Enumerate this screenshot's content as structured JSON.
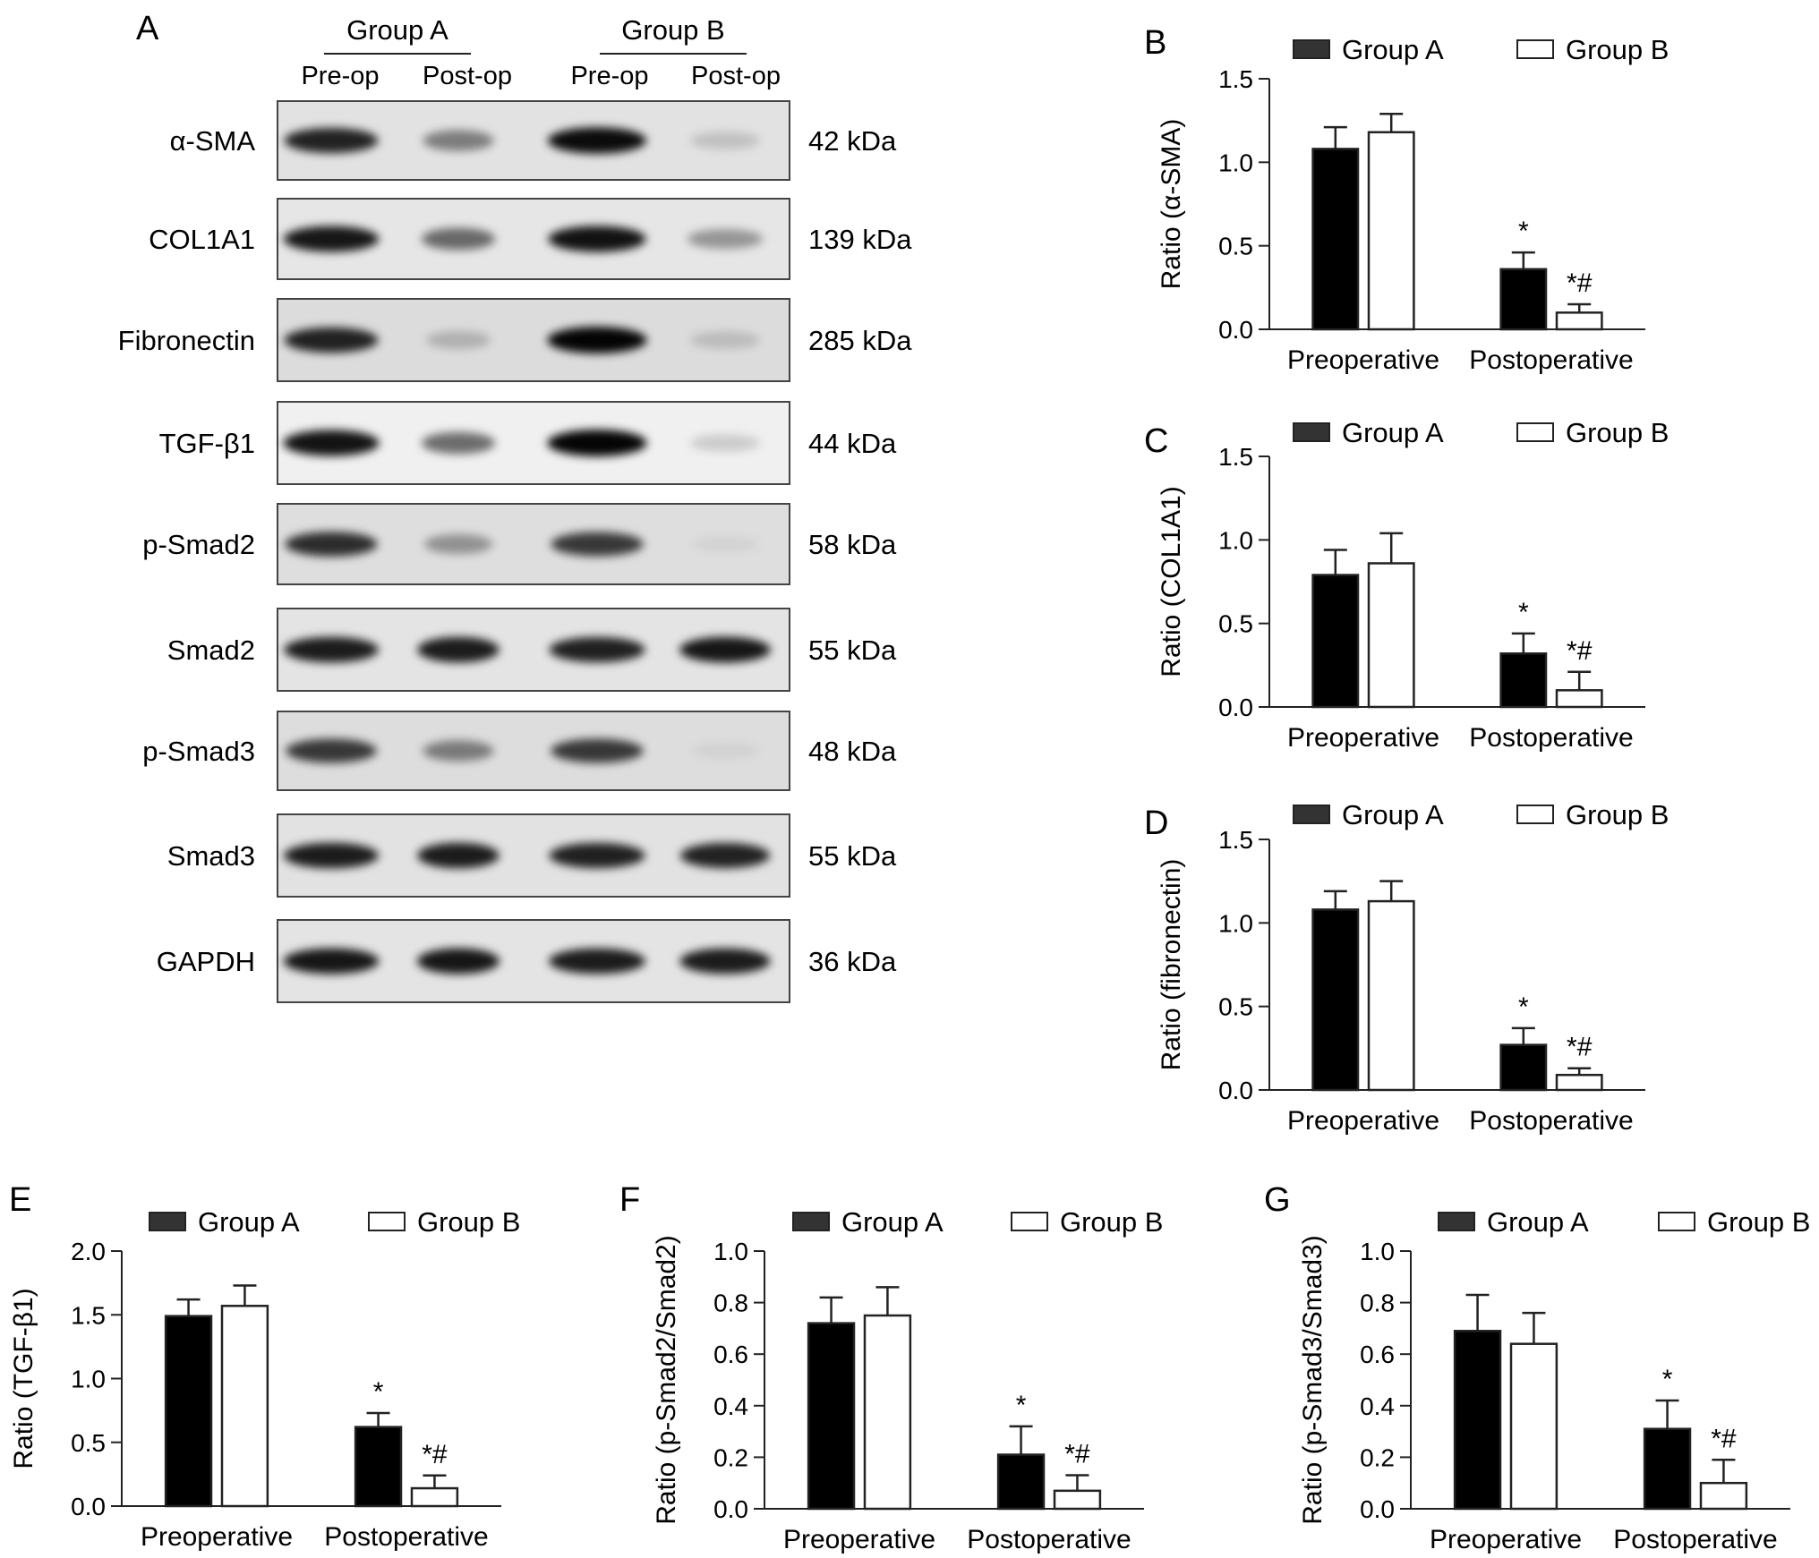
{
  "colors": {
    "ink": "#222222",
    "group_a_fill": "#000000",
    "group_b_fill": "#ffffff",
    "blot_frame": "#444444"
  },
  "blot": {
    "panel_label": "A",
    "groups": [
      {
        "label": "Group A",
        "lanes": [
          "Pre-op",
          "Post-op"
        ]
      },
      {
        "label": "Group B",
        "lanes": [
          "Pre-op",
          "Post-op"
        ]
      }
    ],
    "rows": [
      {
        "protein": "α-SMA",
        "kda": "42 kDa",
        "bg": "#e2e2e2",
        "bands": [
          0.85,
          0.45,
          0.95,
          0.15
        ]
      },
      {
        "protein": "COL1A1",
        "kda": "139 kDa",
        "bg": "#e6e6e6",
        "bands": [
          0.9,
          0.55,
          0.92,
          0.35
        ]
      },
      {
        "protein": "Fibronectin",
        "kda": "285 kDa",
        "bg": "#dcdcdc",
        "bands": [
          0.85,
          0.2,
          0.98,
          0.15
        ]
      },
      {
        "protein": "TGF-β1",
        "kda": "44 kDa",
        "bg": "#f0f0f0",
        "bands": [
          0.92,
          0.55,
          0.98,
          0.15
        ]
      },
      {
        "protein": "p-Smad2",
        "kda": "58 kDa",
        "bg": "#dedede",
        "bands": [
          0.8,
          0.35,
          0.75,
          0.05
        ]
      },
      {
        "protein": "Smad2",
        "kda": "55 kDa",
        "bg": "#e4e4e4",
        "bands": [
          0.88,
          0.88,
          0.86,
          0.9
        ]
      },
      {
        "protein": "p-Smad3",
        "kda": "48 kDa",
        "bg": "#dddddd",
        "bands": [
          0.75,
          0.45,
          0.75,
          0.05
        ]
      },
      {
        "protein": "Smad3",
        "kda": "55 kDa",
        "bg": "#e2e2e2",
        "bands": [
          0.88,
          0.88,
          0.86,
          0.85
        ]
      },
      {
        "protein": "GAPDH",
        "kda": "36 kDa",
        "bg": "#e4e4e4",
        "bands": [
          0.9,
          0.9,
          0.88,
          0.88
        ]
      }
    ]
  },
  "chart_data": [
    {
      "panel": "B",
      "type": "bar",
      "categories": [
        "Preoperative",
        "Postoperative"
      ],
      "ylabel": "Ratio (α-SMA)",
      "ylim": [
        0,
        1.5
      ],
      "yticks": [
        0.0,
        0.5,
        1.0,
        1.5
      ],
      "tick_labels": [
        "0.0",
        "0.5",
        "1.0",
        "1.5"
      ],
      "series": [
        {
          "name": "Group A",
          "values": [
            1.08,
            0.36
          ],
          "errors": [
            0.13,
            0.1
          ]
        },
        {
          "name": "Group B",
          "values": [
            1.18,
            0.1
          ],
          "errors": [
            0.11,
            0.05
          ]
        }
      ],
      "annotations": [
        {
          "text": "*",
          "series": 0,
          "category": 1
        },
        {
          "text": "*#",
          "series": 1,
          "category": 1
        }
      ],
      "legend": "top"
    },
    {
      "panel": "C",
      "type": "bar",
      "categories": [
        "Preoperative",
        "Postoperative"
      ],
      "ylabel": "Ratio (COL1A1)",
      "ylim": [
        0,
        1.5
      ],
      "yticks": [
        0.0,
        0.5,
        1.0,
        1.5
      ],
      "tick_labels": [
        "0.0",
        "0.5",
        "1.0",
        "1.5"
      ],
      "series": [
        {
          "name": "Group A",
          "values": [
            0.79,
            0.32
          ],
          "errors": [
            0.15,
            0.12
          ]
        },
        {
          "name": "Group B",
          "values": [
            0.86,
            0.1
          ],
          "errors": [
            0.18,
            0.11
          ]
        }
      ],
      "annotations": [
        {
          "text": "*",
          "series": 0,
          "category": 1
        },
        {
          "text": "*#",
          "series": 1,
          "category": 1
        }
      ],
      "legend": "top"
    },
    {
      "panel": "D",
      "type": "bar",
      "categories": [
        "Preoperative",
        "Postoperative"
      ],
      "ylabel": "Ratio (fibronectin)",
      "ylim": [
        0,
        1.5
      ],
      "yticks": [
        0.0,
        0.5,
        1.0,
        1.5
      ],
      "tick_labels": [
        "0.0",
        "0.5",
        "1.0",
        "1.5"
      ],
      "series": [
        {
          "name": "Group A",
          "values": [
            1.08,
            0.27
          ],
          "errors": [
            0.11,
            0.1
          ]
        },
        {
          "name": "Group B",
          "values": [
            1.13,
            0.09
          ],
          "errors": [
            0.12,
            0.04
          ]
        }
      ],
      "annotations": [
        {
          "text": "*",
          "series": 0,
          "category": 1
        },
        {
          "text": "*#",
          "series": 1,
          "category": 1
        }
      ],
      "legend": "top"
    },
    {
      "panel": "E",
      "type": "bar",
      "categories": [
        "Preoperative",
        "Postoperative"
      ],
      "ylabel": "Ratio (TGF-β1)",
      "ylim": [
        0,
        2.0
      ],
      "yticks": [
        0.0,
        0.5,
        1.0,
        1.5,
        2.0
      ],
      "tick_labels": [
        "0.0",
        "0.5",
        "1.0",
        "1.5",
        "2.0"
      ],
      "series": [
        {
          "name": "Group A",
          "values": [
            1.49,
            0.62
          ],
          "errors": [
            0.13,
            0.11
          ]
        },
        {
          "name": "Group B",
          "values": [
            1.57,
            0.14
          ],
          "errors": [
            0.16,
            0.1
          ]
        }
      ],
      "annotations": [
        {
          "text": "*",
          "series": 0,
          "category": 1
        },
        {
          "text": "*#",
          "series": 1,
          "category": 1
        }
      ],
      "legend": "top"
    },
    {
      "panel": "F",
      "type": "bar",
      "categories": [
        "Preoperative",
        "Postoperative"
      ],
      "ylabel": "Ratio (p-Smad2/Smad2)",
      "ylim": [
        0,
        1.0
      ],
      "yticks": [
        0.0,
        0.2,
        0.4,
        0.6,
        0.8,
        1.0
      ],
      "tick_labels": [
        "0.0",
        "0.2",
        "0.4",
        "0.6",
        "0.8",
        "1.0"
      ],
      "series": [
        {
          "name": "Group A",
          "values": [
            0.72,
            0.21
          ],
          "errors": [
            0.1,
            0.11
          ]
        },
        {
          "name": "Group B",
          "values": [
            0.75,
            0.07
          ],
          "errors": [
            0.11,
            0.06
          ]
        }
      ],
      "annotations": [
        {
          "text": "*",
          "series": 0,
          "category": 1
        },
        {
          "text": "*#",
          "series": 1,
          "category": 1
        }
      ],
      "legend": "top"
    },
    {
      "panel": "G",
      "type": "bar",
      "categories": [
        "Preoperative",
        "Postoperative"
      ],
      "ylabel": "Ratio (p-Smad3/Smad3)",
      "ylim": [
        0,
        1.0
      ],
      "yticks": [
        0.0,
        0.2,
        0.4,
        0.6,
        0.8,
        1.0
      ],
      "tick_labels": [
        "0.0",
        "0.2",
        "0.4",
        "0.6",
        "0.8",
        "1.0"
      ],
      "series": [
        {
          "name": "Group A",
          "values": [
            0.69,
            0.31
          ],
          "errors": [
            0.14,
            0.11
          ]
        },
        {
          "name": "Group B",
          "values": [
            0.64,
            0.1
          ],
          "errors": [
            0.12,
            0.09
          ]
        }
      ],
      "annotations": [
        {
          "text": "*",
          "series": 0,
          "category": 1
        },
        {
          "text": "*#",
          "series": 1,
          "category": 1
        }
      ],
      "legend": "top"
    }
  ]
}
